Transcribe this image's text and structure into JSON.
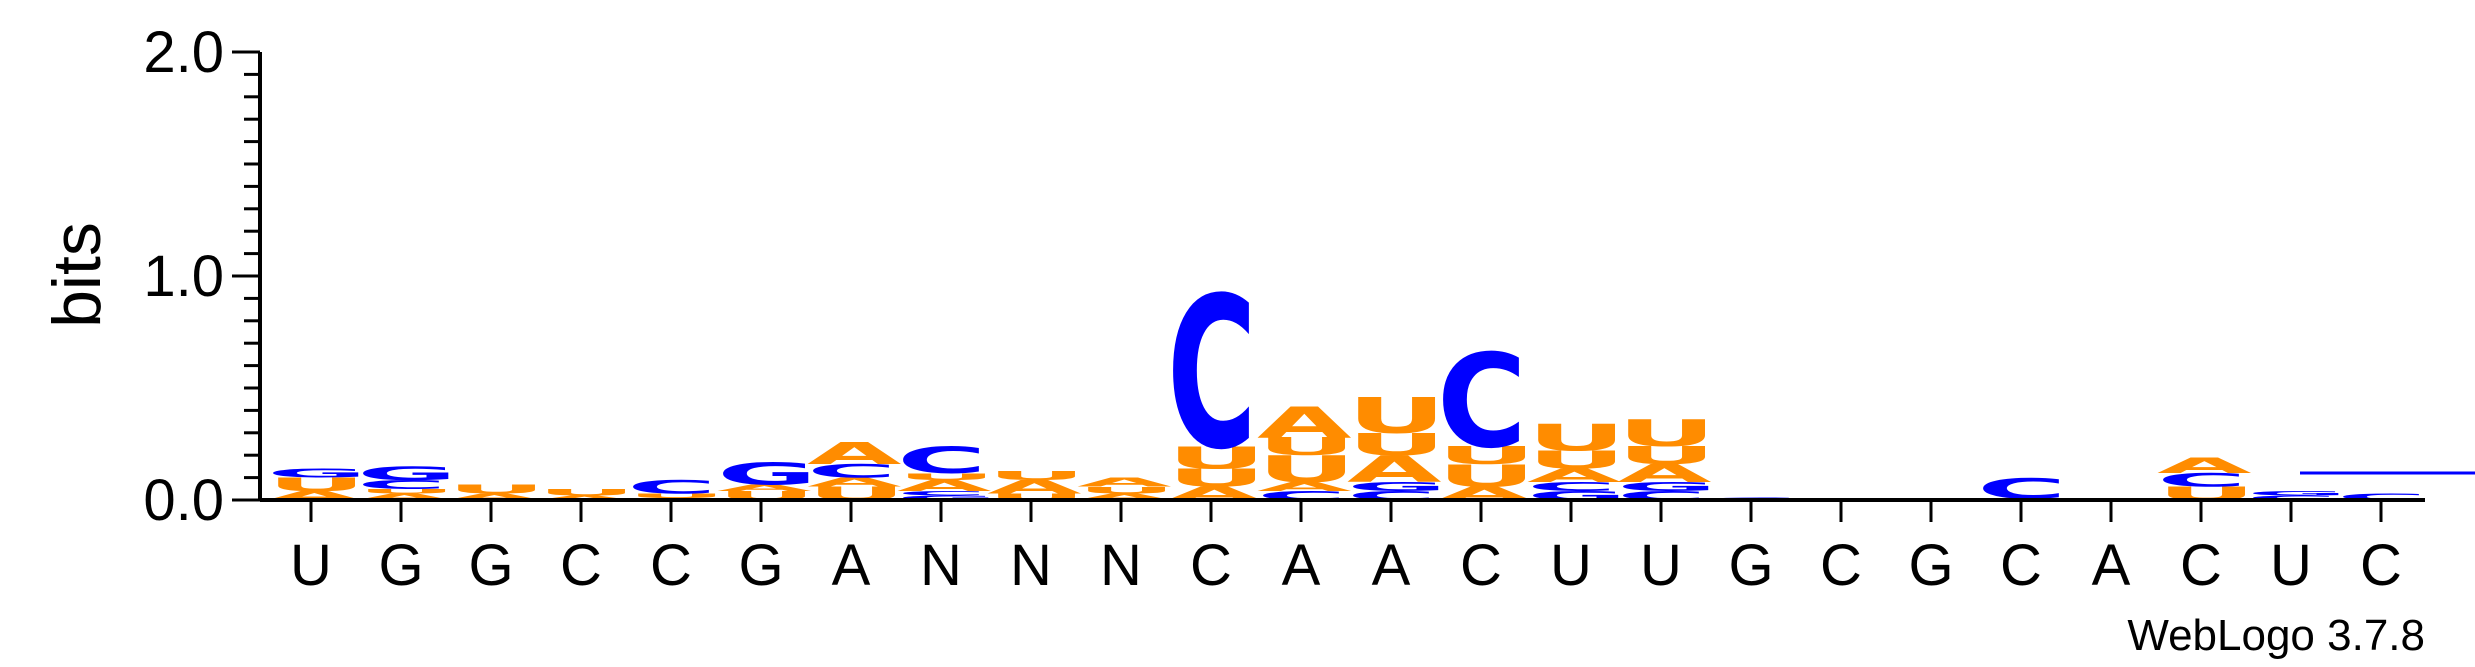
{
  "chart_data": {
    "type": "sequence-logo",
    "ylabel": "bits",
    "ylim": [
      0,
      2.0
    ],
    "y_ticks": [
      "0.0",
      "1.0",
      "2.0"
    ],
    "consensus": [
      "U",
      "G",
      "G",
      "C",
      "C",
      "G",
      "A",
      "N",
      "N",
      "N",
      "C",
      "A",
      "A",
      "C",
      "U",
      "U",
      "G",
      "C",
      "G",
      "C",
      "A",
      "C",
      "U",
      "C"
    ],
    "colors": {
      "A": "#ff8c00",
      "U": "#ff8c00",
      "C": "#0000ff",
      "G": "#0000ff"
    },
    "positions": [
      {
        "stack": [
          [
            "A",
            0.04
          ],
          [
            "U",
            0.06
          ],
          [
            "G",
            0.04
          ]
        ]
      },
      {
        "stack": [
          [
            "A",
            0.03
          ],
          [
            "U",
            0.02
          ],
          [
            "C",
            0.04
          ],
          [
            "G",
            0.06
          ]
        ]
      },
      {
        "stack": [
          [
            "A",
            0.03
          ],
          [
            "U",
            0.04
          ]
        ]
      },
      {
        "stack": [
          [
            "A",
            0.02
          ],
          [
            "U",
            0.03
          ]
        ]
      },
      {
        "stack": [
          [
            "A",
            0.01
          ],
          [
            "U",
            0.02
          ],
          [
            "C",
            0.06
          ]
        ]
      },
      {
        "stack": [
          [
            "U",
            0.04
          ],
          [
            "A",
            0.03
          ],
          [
            "G",
            0.1
          ]
        ]
      },
      {
        "stack": [
          [
            "U",
            0.06
          ],
          [
            "A",
            0.04
          ],
          [
            "C",
            0.06
          ],
          [
            "A",
            0.1
          ]
        ]
      },
      {
        "stack": [
          [
            "G",
            0.02
          ],
          [
            "C",
            0.02
          ],
          [
            "A",
            0.05
          ],
          [
            "U",
            0.03
          ],
          [
            "C",
            0.12
          ]
        ]
      },
      {
        "stack": [
          [
            "U",
            0.03
          ],
          [
            "A",
            0.06
          ],
          [
            "U",
            0.04
          ]
        ]
      },
      {
        "stack": [
          [
            "A",
            0.03
          ],
          [
            "U",
            0.03
          ],
          [
            "A",
            0.04
          ]
        ]
      },
      {
        "stack": [
          [
            "A",
            0.06
          ],
          [
            "U",
            0.08
          ],
          [
            "U",
            0.1
          ],
          [
            "C",
            0.68
          ]
        ]
      },
      {
        "stack": [
          [
            "C",
            0.04
          ],
          [
            "A",
            0.04
          ],
          [
            "U",
            0.12
          ],
          [
            "U",
            0.08
          ],
          [
            "A",
            0.14
          ]
        ]
      },
      {
        "stack": [
          [
            "C",
            0.04
          ],
          [
            "G",
            0.04
          ],
          [
            "A",
            0.12
          ],
          [
            "U",
            0.1
          ],
          [
            "U",
            0.16
          ]
        ]
      },
      {
        "stack": [
          [
            "A",
            0.06
          ],
          [
            "U",
            0.1
          ],
          [
            "U",
            0.08
          ],
          [
            "C",
            0.42
          ]
        ]
      },
      {
        "stack": [
          [
            "G",
            0.04
          ],
          [
            "C",
            0.04
          ],
          [
            "A",
            0.06
          ],
          [
            "U",
            0.08
          ],
          [
            "U",
            0.12
          ]
        ]
      },
      {
        "stack": [
          [
            "C",
            0.04
          ],
          [
            "G",
            0.04
          ],
          [
            "A",
            0.08
          ],
          [
            "U",
            0.08
          ],
          [
            "U",
            0.12
          ]
        ]
      },
      {
        "stack": [
          [
            "C",
            0.01
          ]
        ]
      },
      {
        "stack": []
      },
      {
        "stack": []
      },
      {
        "stack": [
          [
            "A",
            0.01
          ],
          [
            "C",
            0.09
          ]
        ]
      },
      {
        "stack": []
      },
      {
        "stack": [
          [
            "U",
            0.06
          ],
          [
            "C",
            0.06
          ],
          [
            "A",
            0.07
          ]
        ]
      },
      {
        "stack": [
          [
            "C",
            0.02
          ],
          [
            "G",
            0.02
          ]
        ]
      },
      {
        "stack": [
          [
            "C",
            0.03
          ]
        ]
      }
    ]
  },
  "credit": "WebLogo 3.7.8"
}
